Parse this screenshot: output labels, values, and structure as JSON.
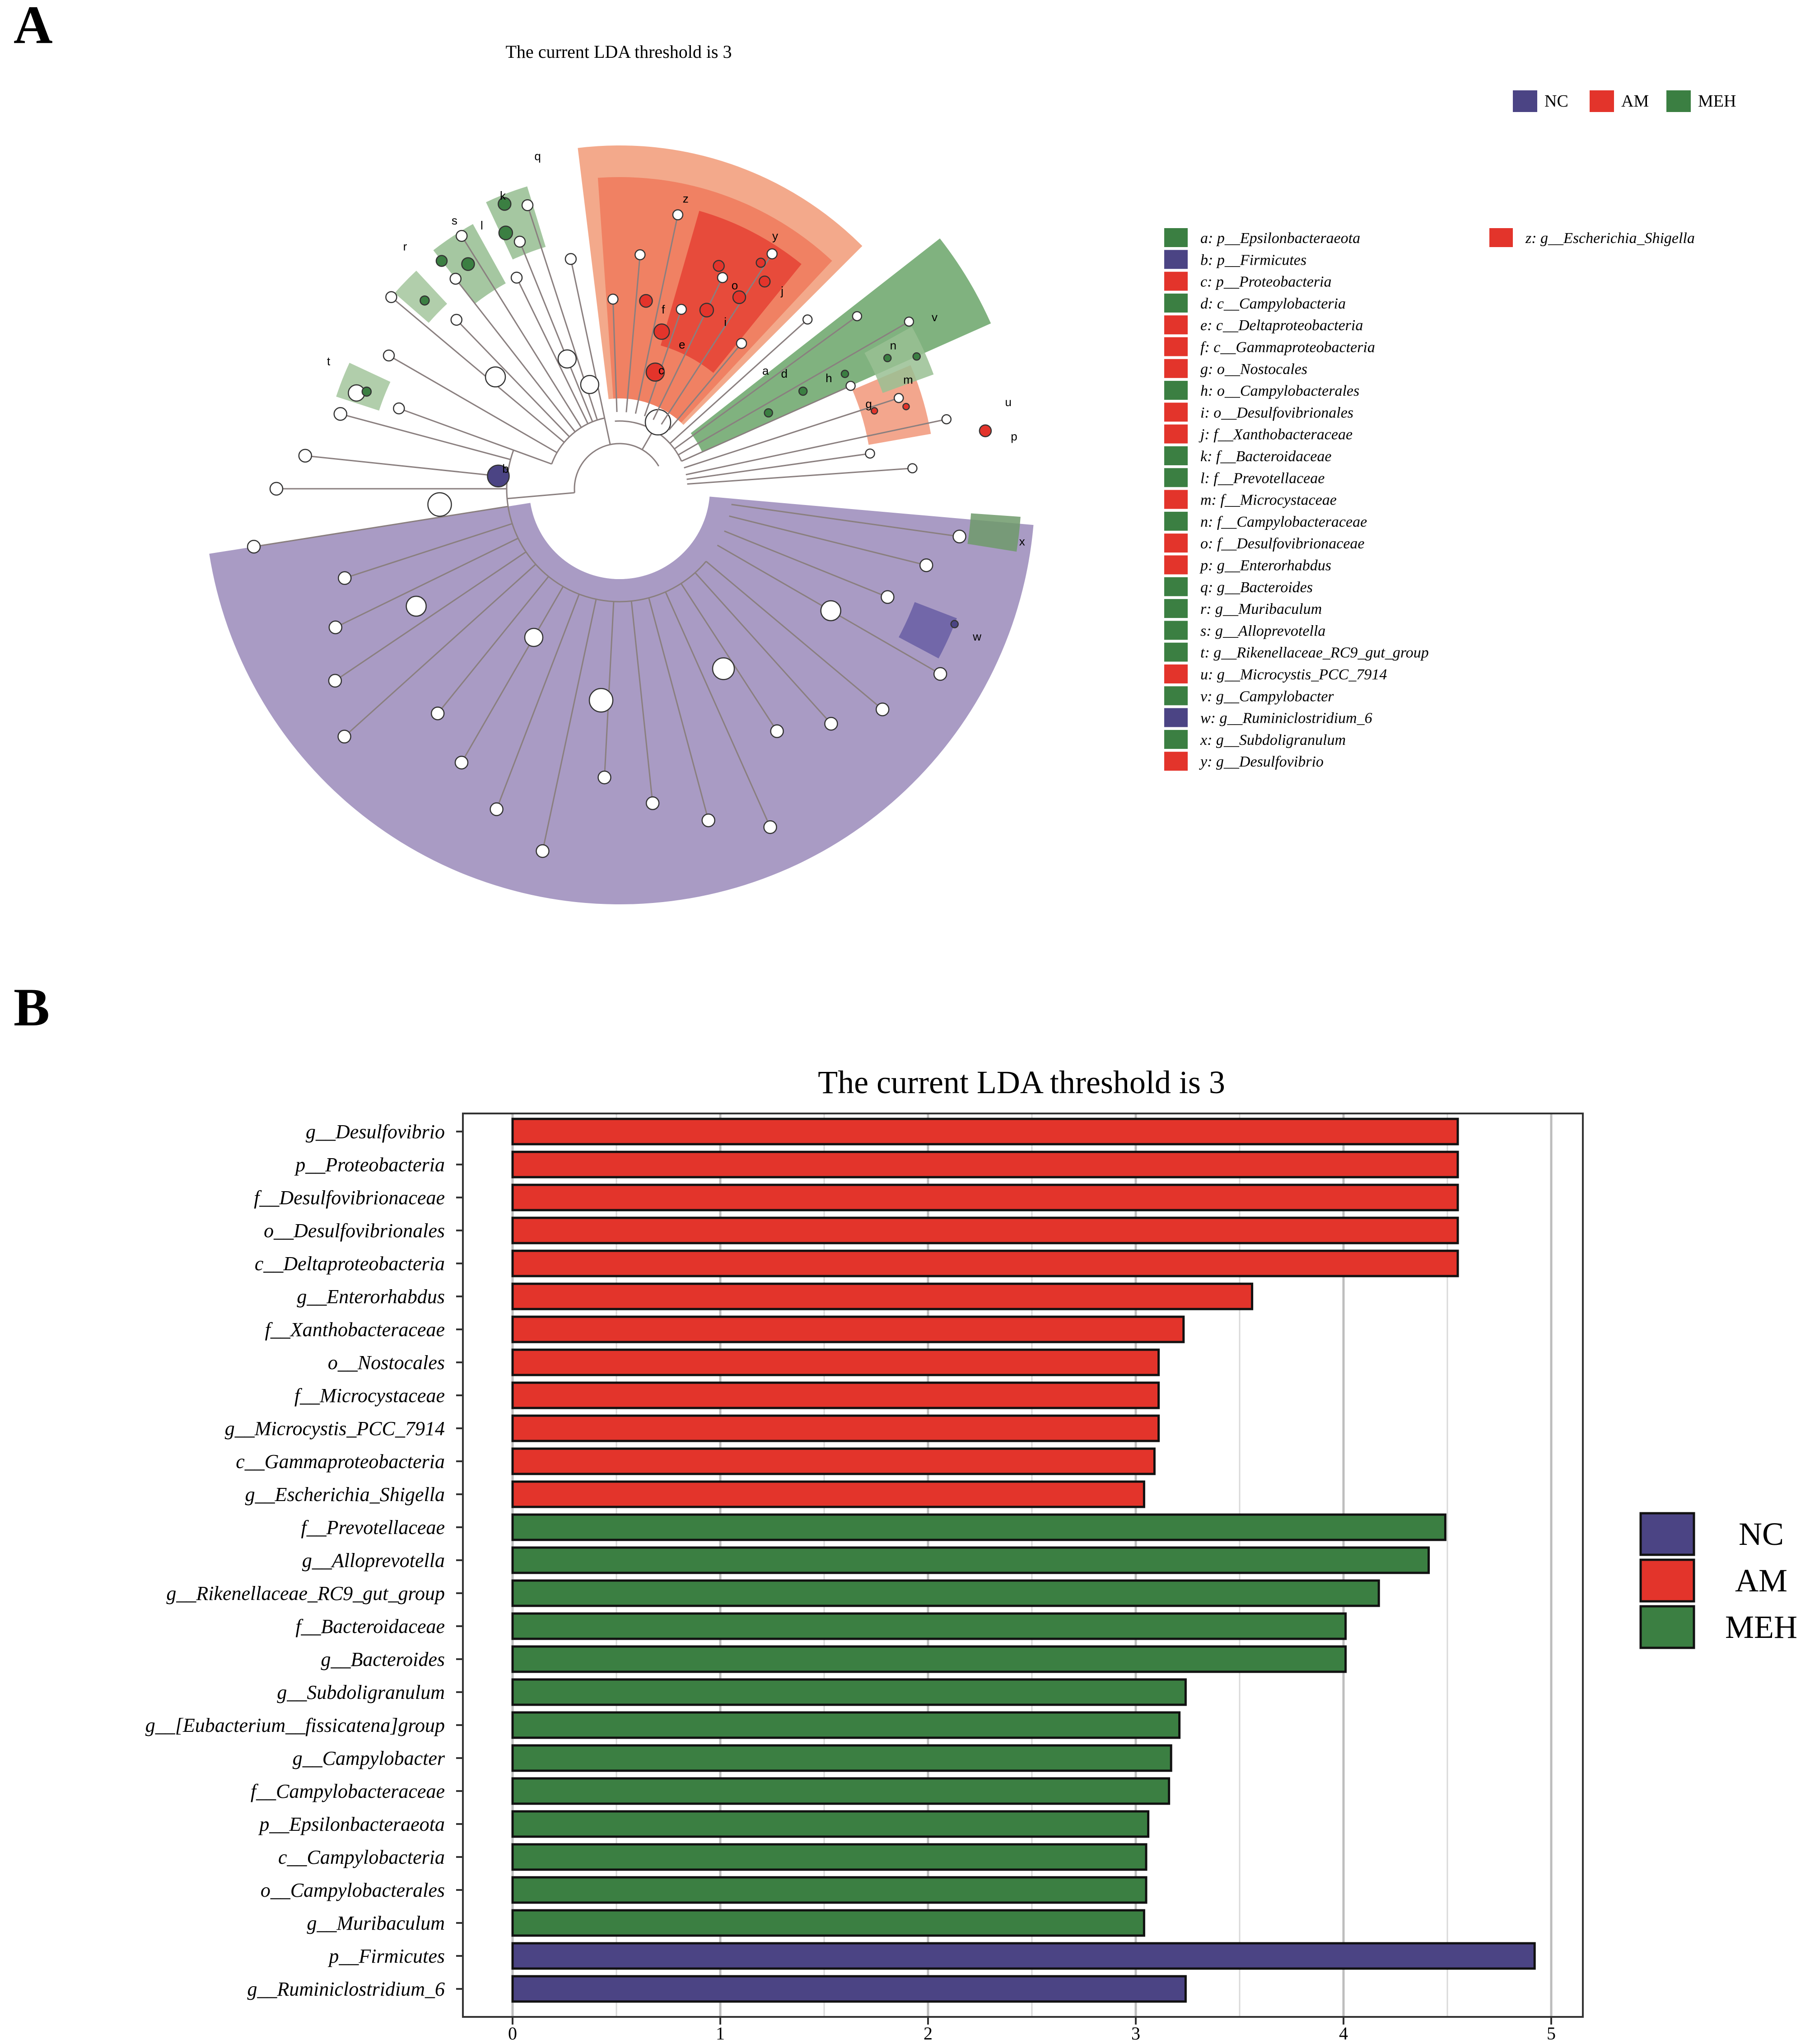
{
  "figure": {
    "panel_a_label": "A",
    "panel_b_label": "B"
  },
  "cladogram": {
    "title": "The current LDA threshold is 3",
    "groups": [
      {
        "name": "NC",
        "color": "#4b4484"
      },
      {
        "name": "AM",
        "color": "#e3342b"
      },
      {
        "name": "MEH",
        "color": "#3b7f42"
      }
    ],
    "legend_entries": [
      {
        "text": "a: p__Epsilonbacteraeota",
        "group": "MEH"
      },
      {
        "text": "b: p__Firmicutes",
        "group": "NC"
      },
      {
        "text": "c: p__Proteobacteria",
        "group": "AM"
      },
      {
        "text": "d: c__Campylobacteria",
        "group": "MEH"
      },
      {
        "text": "e: c__Deltaproteobacteria",
        "group": "AM"
      },
      {
        "text": "f: c__Gammaproteobacteria",
        "group": "AM"
      },
      {
        "text": "g: o__Nostocales",
        "group": "AM"
      },
      {
        "text": "h: o__Campylobacterales",
        "group": "MEH"
      },
      {
        "text": "i: o__Desulfovibrionales",
        "group": "AM"
      },
      {
        "text": "j: f__Xanthobacteraceae",
        "group": "AM"
      },
      {
        "text": "k: f__Bacteroidaceae",
        "group": "MEH"
      },
      {
        "text": "l: f__Prevotellaceae",
        "group": "MEH"
      },
      {
        "text": "m: f__Microcystaceae",
        "group": "AM"
      },
      {
        "text": "n: f__Campylobacteraceae",
        "group": "MEH"
      },
      {
        "text": "o: f__Desulfovibrionaceae",
        "group": "AM"
      },
      {
        "text": "p: g__Enterorhabdus",
        "group": "AM"
      },
      {
        "text": "q: g__Bacteroides",
        "group": "MEH"
      },
      {
        "text": "r: g__Muribaculum",
        "group": "MEH"
      },
      {
        "text": "s: g__Alloprevotella",
        "group": "MEH"
      },
      {
        "text": "t: g__Rikenellaceae_RC9_gut_group",
        "group": "MEH"
      },
      {
        "text": "u: g__Microcystis_PCC_7914",
        "group": "AM"
      },
      {
        "text": "v: g__Campylobacter",
        "group": "MEH"
      },
      {
        "text": "w: g__Ruminiclostridium_6",
        "group": "NC"
      },
      {
        "text": "x: g__Subdoligranulum",
        "group": "MEH"
      },
      {
        "text": "y: g__Desulfovibrio",
        "group": "AM"
      },
      {
        "text": "z: g__Escherichia_Shigella",
        "group": "AM"
      }
    ],
    "node_letters": [
      "a",
      "b",
      "c",
      "d",
      "e",
      "f",
      "g",
      "h",
      "i",
      "j",
      "k",
      "l",
      "m",
      "n",
      "o",
      "p",
      "q",
      "r",
      "s",
      "t",
      "u",
      "v",
      "w",
      "x",
      "y",
      "z"
    ]
  },
  "chart_data": {
    "type": "bar",
    "orientation": "horizontal",
    "title": "The current LDA threshold is 3",
    "xlabel": "",
    "ylabel": "",
    "xlim": [
      0,
      5.15
    ],
    "xticks": [
      0,
      1,
      2,
      3,
      4,
      5
    ],
    "grid": true,
    "legend_position": "right",
    "legend": [
      {
        "name": "NC",
        "color": "#4b4484"
      },
      {
        "name": "AM",
        "color": "#e3342b"
      },
      {
        "name": "MEH",
        "color": "#3b7f42"
      }
    ],
    "categories": [
      "g__Desulfovibrio",
      "p__Proteobacteria",
      "f__Desulfovibrionaceae",
      "o__Desulfovibrionales",
      "c__Deltaproteobacteria",
      "g__Enterorhabdus",
      "f__Xanthobacteraceae",
      "o__Nostocales",
      "f__Microcystaceae",
      "g__Microcystis_PCC_7914",
      "c__Gammaproteobacteria",
      "g__Escherichia_Shigella",
      "f__Prevotellaceae",
      "g__Alloprevotella",
      "g__Rikenellaceae_RC9_gut_group",
      "f__Bacteroidaceae",
      "g__Bacteroides",
      "g__Subdoligranulum",
      "g__[Eubacterium__fissicatena]group",
      "g__Campylobacter",
      "f__Campylobacteraceae",
      "p__Epsilonbacteraeota",
      "c__Campylobacteria",
      "o__Campylobacterales",
      "g__Muribaculum",
      "p__Firmicutes",
      "g__Ruminiclostridium_6"
    ],
    "values": [
      4.55,
      4.55,
      4.55,
      4.55,
      4.55,
      3.56,
      3.23,
      3.11,
      3.11,
      3.11,
      3.09,
      3.04,
      4.49,
      4.41,
      4.17,
      4.01,
      4.01,
      3.24,
      3.21,
      3.17,
      3.16,
      3.06,
      3.05,
      3.05,
      3.04,
      4.92,
      3.24
    ],
    "groups": [
      "AM",
      "AM",
      "AM",
      "AM",
      "AM",
      "AM",
      "AM",
      "AM",
      "AM",
      "AM",
      "AM",
      "AM",
      "MEH",
      "MEH",
      "MEH",
      "MEH",
      "MEH",
      "MEH",
      "MEH",
      "MEH",
      "MEH",
      "MEH",
      "MEH",
      "MEH",
      "MEH",
      "NC",
      "NC"
    ]
  }
}
